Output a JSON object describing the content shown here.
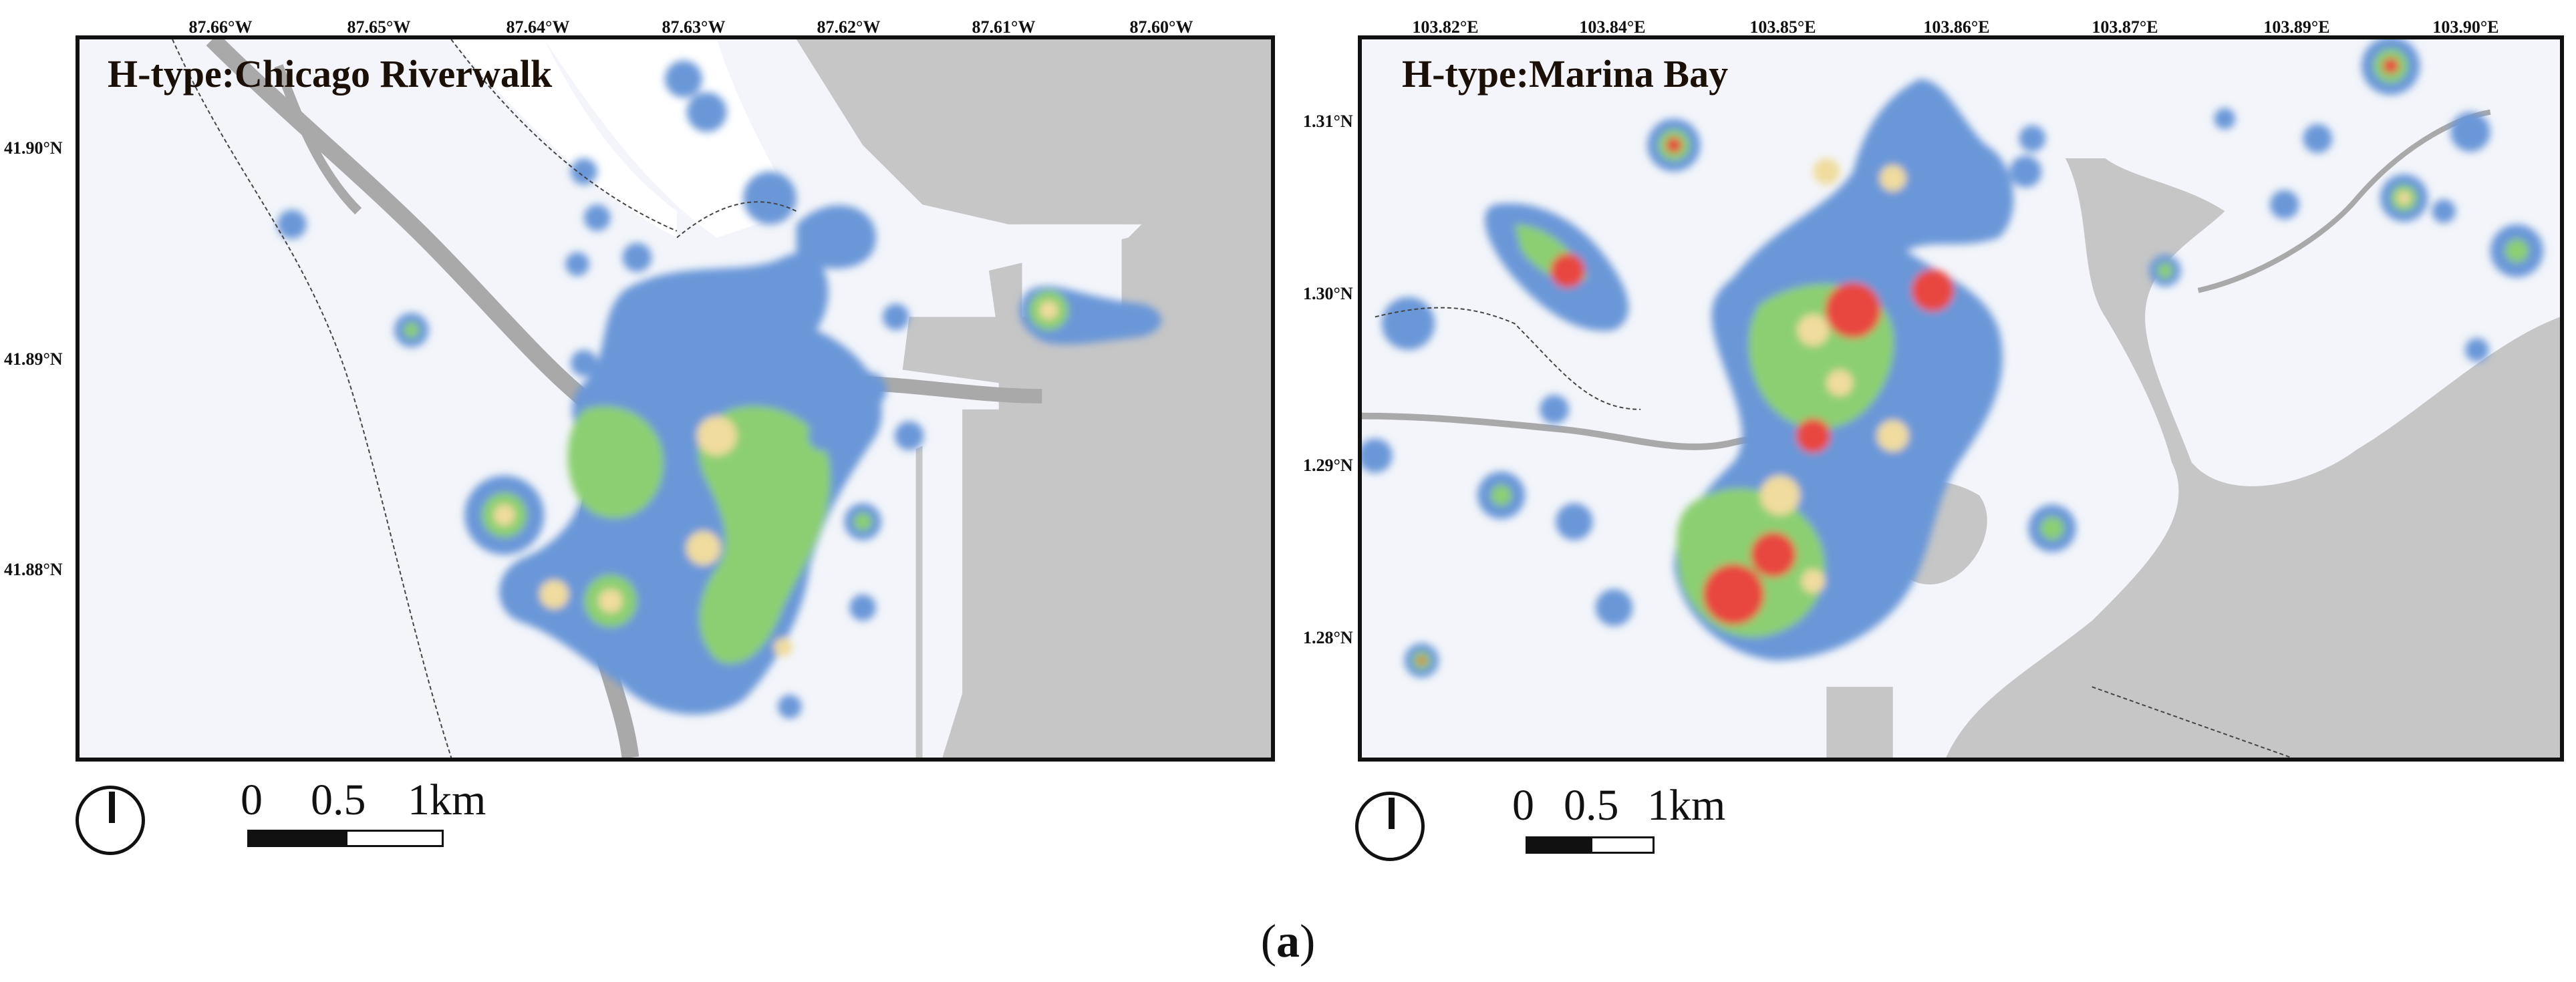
{
  "caption": {
    "open": "(",
    "letter": "a",
    "close": ")"
  },
  "colors": {
    "land": "#f3f5fa",
    "water": "#c6c6c6",
    "river": "#a9a9a9",
    "blue": "#6b97d8",
    "green": "#8ccf72",
    "yellow": "#f0dc9e",
    "red": "#e8463f"
  },
  "maps": [
    {
      "title": "H-type:Chicago Riverwalk",
      "lon_ticks": [
        "87.66°W",
        "87.65°W",
        "87.64°W",
        "87.63°W",
        "87.62°W",
        "87.61°W",
        "87.60°W"
      ],
      "lat_ticks": [
        "41.90°N",
        "41.89°N",
        "41.88°N"
      ],
      "scale": {
        "zero": "0",
        "mid": "0.5",
        "end": "1km"
      },
      "north_icon": "north-arrow-icon"
    },
    {
      "title": "H-type:Marina Bay",
      "lon_ticks": [
        "103.82°E",
        "103.84°E",
        "103.85°E",
        "103.86°E",
        "103.87°E",
        "103.89°E",
        "103.90°E"
      ],
      "lat_ticks": [
        "1.31°N",
        "1.30°N",
        "1.29°N",
        "1.28°N"
      ],
      "scale": {
        "zero": "0",
        "mid": "0.5",
        "end": "1km"
      },
      "north_icon": "north-arrow-icon"
    }
  ]
}
